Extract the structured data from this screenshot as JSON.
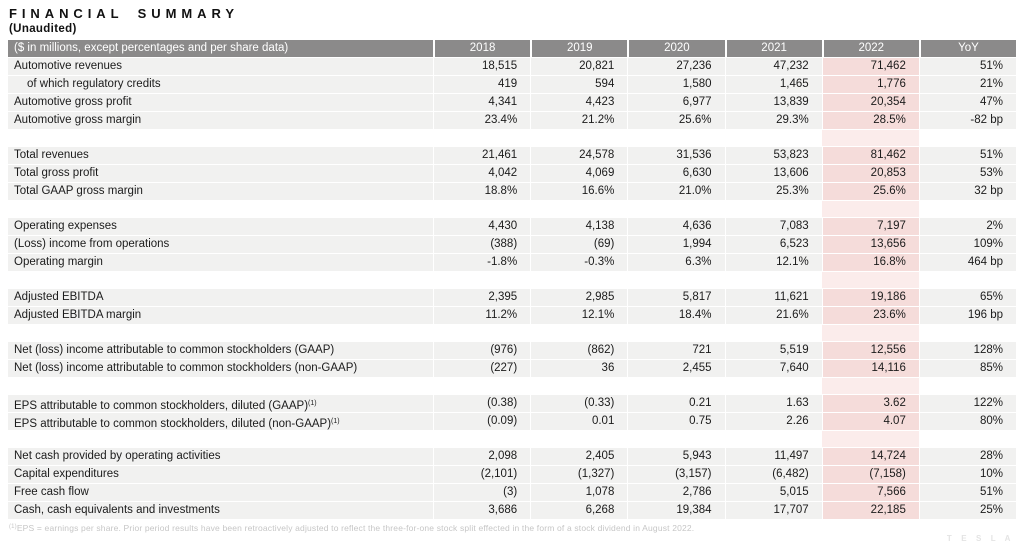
{
  "page": {
    "title": "FINANCIAL SUMMARY",
    "subtitle": "(Unaudited)"
  },
  "colors": {
    "header_bg": "#8b8a8a",
    "row_bg": "#f1f1f0",
    "highlight_2022": "#f5dcda",
    "highlight_2022_gap": "#fbeceb"
  },
  "table": {
    "header": {
      "label": "($ in millions, except percentages and per share data)",
      "columns": [
        "2018",
        "2019",
        "2020",
        "2021",
        "2022",
        "YoY"
      ],
      "highlighted_column": "2022"
    },
    "sections": [
      {
        "rows": [
          {
            "label": "Automotive revenues",
            "values": [
              "18,515",
              "20,821",
              "27,236",
              "47,232",
              "71,462",
              "51%"
            ]
          },
          {
            "label": "of which regulatory credits",
            "indent": true,
            "values": [
              "419",
              "594",
              "1,580",
              "1,465",
              "1,776",
              "21%"
            ]
          },
          {
            "label": "Automotive gross profit",
            "values": [
              "4,341",
              "4,423",
              "6,977",
              "13,839",
              "20,354",
              "47%"
            ]
          },
          {
            "label": "Automotive gross margin",
            "values": [
              "23.4%",
              "21.2%",
              "25.6%",
              "29.3%",
              "28.5%",
              "-82 bp"
            ]
          }
        ]
      },
      {
        "rows": [
          {
            "label": "Total revenues",
            "values": [
              "21,461",
              "24,578",
              "31,536",
              "53,823",
              "81,462",
              "51%"
            ]
          },
          {
            "label": "Total gross profit",
            "values": [
              "4,042",
              "4,069",
              "6,630",
              "13,606",
              "20,853",
              "53%"
            ]
          },
          {
            "label": "Total GAAP gross margin",
            "values": [
              "18.8%",
              "16.6%",
              "21.0%",
              "25.3%",
              "25.6%",
              "32 bp"
            ]
          }
        ]
      },
      {
        "rows": [
          {
            "label": "Operating expenses",
            "values": [
              "4,430",
              "4,138",
              "4,636",
              "7,083",
              "7,197",
              "2%"
            ]
          },
          {
            "label": "(Loss) income from operations",
            "values": [
              "(388)",
              "(69)",
              "1,994",
              "6,523",
              "13,656",
              "109%"
            ]
          },
          {
            "label": "Operating margin",
            "values": [
              "-1.8%",
              "-0.3%",
              "6.3%",
              "12.1%",
              "16.8%",
              "464 bp"
            ]
          }
        ]
      },
      {
        "rows": [
          {
            "label": "Adjusted EBITDA",
            "values": [
              "2,395",
              "2,985",
              "5,817",
              "11,621",
              "19,186",
              "65%"
            ]
          },
          {
            "label": "Adjusted EBITDA margin",
            "values": [
              "11.2%",
              "12.1%",
              "18.4%",
              "21.6%",
              "23.6%",
              "196 bp"
            ]
          }
        ]
      },
      {
        "rows": [
          {
            "label": "Net (loss) income attributable to common stockholders (GAAP)",
            "values": [
              "(976)",
              "(862)",
              "721",
              "5,519",
              "12,556",
              "128%"
            ]
          },
          {
            "label": "Net (loss) income attributable to common stockholders (non-GAAP)",
            "values": [
              "(227)",
              "36",
              "2,455",
              "7,640",
              "14,116",
              "85%"
            ]
          }
        ]
      },
      {
        "rows": [
          {
            "label": "EPS attributable to common stockholders, diluted (GAAP)",
            "sup": "(1)",
            "values": [
              "(0.38)",
              "(0.33)",
              "0.21",
              "1.63",
              "3.62",
              "122%"
            ]
          },
          {
            "label": "EPS attributable to common stockholders, diluted (non-GAAP)",
            "sup": "(1)",
            "values": [
              "(0.09)",
              "0.01",
              "0.75",
              "2.26",
              "4.07",
              "80%"
            ]
          }
        ]
      },
      {
        "rows": [
          {
            "label": "Net cash provided by operating activities",
            "values": [
              "2,098",
              "2,405",
              "5,943",
              "11,497",
              "14,724",
              "28%"
            ]
          },
          {
            "label": "Capital expenditures",
            "values": [
              "(2,101)",
              "(1,327)",
              "(3,157)",
              "(6,482)",
              "(7,158)",
              "10%"
            ]
          },
          {
            "label": "Free cash flow",
            "values": [
              "(3)",
              "1,078",
              "2,786",
              "5,015",
              "7,566",
              "51%"
            ]
          },
          {
            "label": "Cash, cash equivalents and investments",
            "values": [
              "3,686",
              "6,268",
              "19,384",
              "17,707",
              "22,185",
              "25%"
            ]
          }
        ]
      }
    ]
  },
  "footnote": {
    "sup": "(1)",
    "text": "EPS = earnings per share. Prior period results have been retroactively adjusted to reflect the three-for-one stock split effected in the form of a stock dividend in August 2022."
  },
  "watermark": "TESLA"
}
